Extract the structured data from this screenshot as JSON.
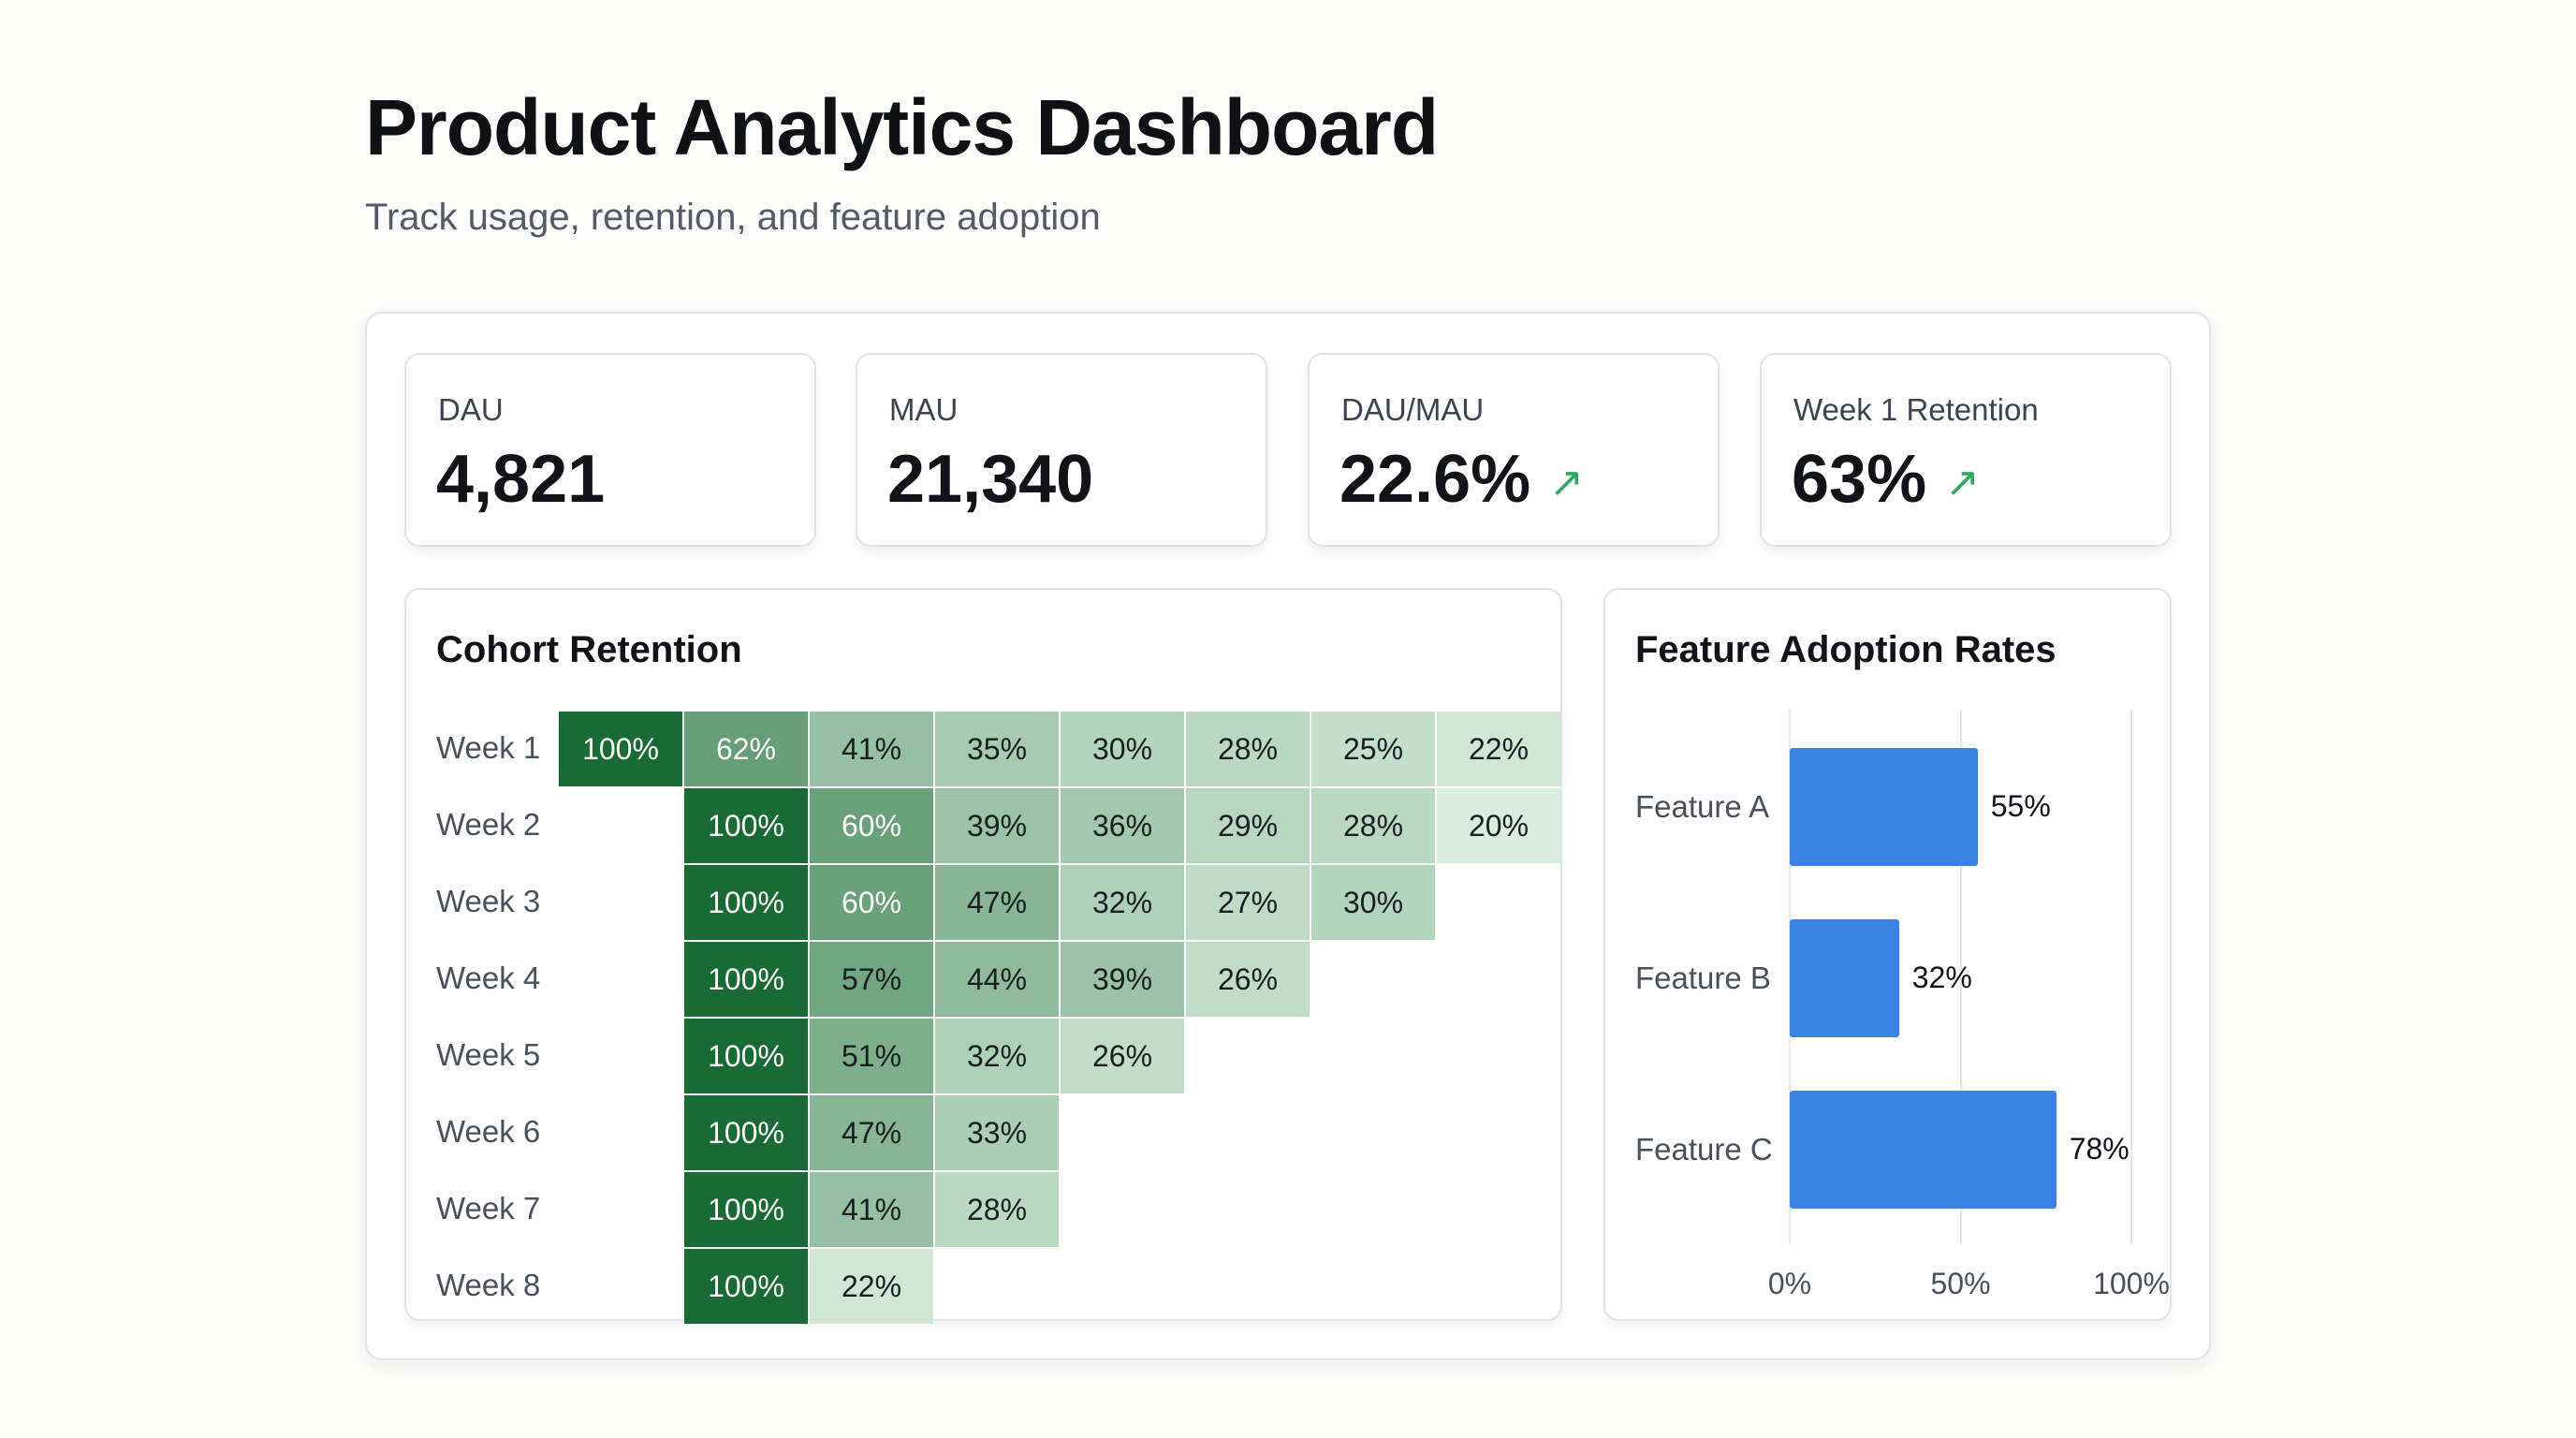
{
  "header": {
    "title": "Product Analytics Dashboard",
    "subtitle": "Track usage, retention, and feature adoption"
  },
  "kpis": [
    {
      "label": "DAU",
      "value": "4,821",
      "trend": ""
    },
    {
      "label": "MAU",
      "value": "21,340",
      "trend": ""
    },
    {
      "label": "DAU/MAU",
      "value": "22.6%",
      "trend": "↗"
    },
    {
      "label": "Week 1 Retention",
      "value": "63%",
      "trend": "↗"
    }
  ],
  "colors": {
    "heat_dark": "#186b34",
    "heat_light": "#e6f4e8",
    "bar": "#3b83e0",
    "trend_up": "#2faa5e"
  },
  "cohort": {
    "title": "Cohort Retention",
    "rows": [
      {
        "label": "Week 1",
        "start": 0,
        "values": [
          100,
          62,
          41,
          35,
          30,
          28,
          25,
          22
        ]
      },
      {
        "label": "Week 2",
        "start": 1,
        "values": [
          100,
          60,
          39,
          36,
          29,
          28,
          20
        ]
      },
      {
        "label": "Week 3",
        "start": 1,
        "values": [
          100,
          60,
          47,
          32,
          27,
          30
        ]
      },
      {
        "label": "Week 4",
        "start": 1,
        "values": [
          100,
          57,
          44,
          39,
          26
        ]
      },
      {
        "label": "Week 5",
        "start": 1,
        "values": [
          100,
          51,
          32,
          26
        ]
      },
      {
        "label": "Week 6",
        "start": 1,
        "values": [
          100,
          47,
          33
        ]
      },
      {
        "label": "Week 7",
        "start": 1,
        "values": [
          100,
          41,
          28
        ]
      },
      {
        "label": "Week 8",
        "start": 1,
        "values": [
          100,
          22
        ]
      }
    ]
  },
  "chart_data": {
    "type": "bar",
    "orientation": "horizontal",
    "title": "Feature Adoption Rates",
    "categories": [
      "Feature A",
      "Feature B",
      "Feature C"
    ],
    "values": [
      55,
      32,
      78
    ],
    "value_labels": [
      "55%",
      "32%",
      "78%"
    ],
    "xlim": [
      0,
      100
    ],
    "xticks": [
      "0%",
      "50%",
      "100%"
    ],
    "grid": true
  }
}
